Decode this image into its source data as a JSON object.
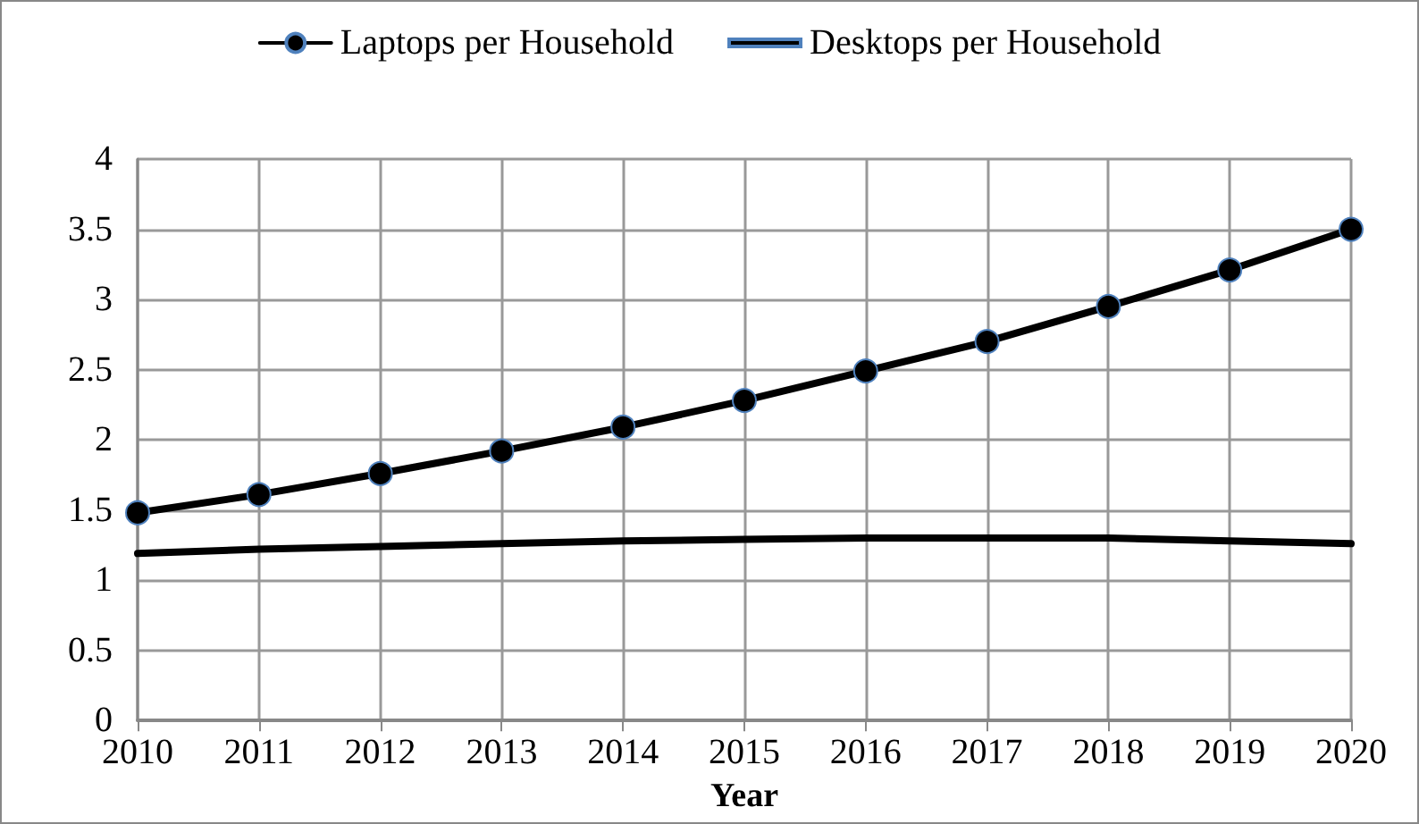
{
  "chart_data": {
    "type": "line",
    "xlabel": "Year",
    "categories": [
      "2010",
      "2011",
      "2012",
      "2013",
      "2014",
      "2015",
      "2016",
      "2017",
      "2018",
      "2019",
      "2020"
    ],
    "series": [
      {
        "name": "Laptops per Household",
        "color": "#000000",
        "marker": "circle",
        "values": [
          1.48,
          1.61,
          1.76,
          1.92,
          2.09,
          2.28,
          2.49,
          2.7,
          2.95,
          3.21,
          3.5
        ]
      },
      {
        "name": "Desktops per Household",
        "color": "#000000",
        "marker": "none",
        "values": [
          1.19,
          1.22,
          1.24,
          1.26,
          1.28,
          1.29,
          1.3,
          1.3,
          1.3,
          1.28,
          1.26
        ]
      }
    ],
    "ylim": [
      0,
      4
    ],
    "yticks": [
      0,
      0.5,
      1,
      1.5,
      2,
      2.5,
      3,
      3.5,
      4
    ],
    "grid": true,
    "legend": "top",
    "line_style": "solid"
  }
}
